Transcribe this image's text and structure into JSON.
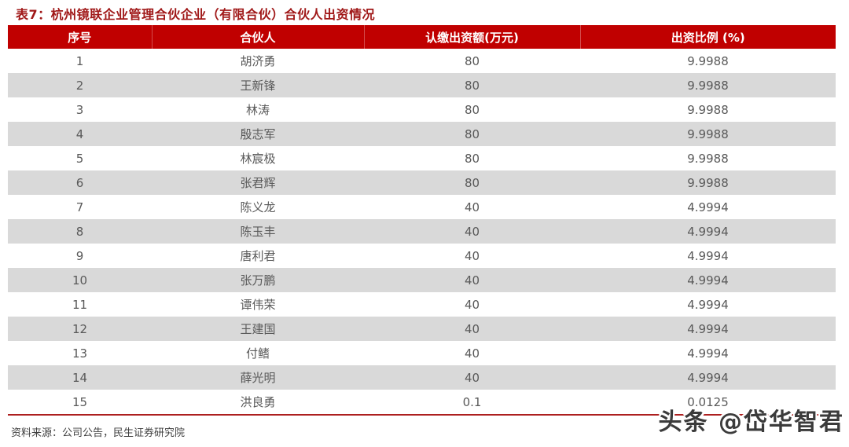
{
  "title": "表7：杭州镜联企业管理合伙企业（有限合伙）合伙人出资情况",
  "table": {
    "columns": [
      "序号",
      "合伙人",
      "认缴出资额(万元)",
      "出资比例 (%)"
    ],
    "rows": [
      {
        "seq": "1",
        "partner": "胡济勇",
        "amount": "80",
        "ratio": "9.9988"
      },
      {
        "seq": "2",
        "partner": "王新锋",
        "amount": "80",
        "ratio": "9.9988"
      },
      {
        "seq": "3",
        "partner": "林涛",
        "amount": "80",
        "ratio": "9.9988"
      },
      {
        "seq": "4",
        "partner": "殷志军",
        "amount": "80",
        "ratio": "9.9988"
      },
      {
        "seq": "5",
        "partner": "林宸极",
        "amount": "80",
        "ratio": "9.9988"
      },
      {
        "seq": "6",
        "partner": "张君辉",
        "amount": "80",
        "ratio": "9.9988"
      },
      {
        "seq": "7",
        "partner": "陈义龙",
        "amount": "40",
        "ratio": "4.9994"
      },
      {
        "seq": "8",
        "partner": "陈玉丰",
        "amount": "40",
        "ratio": "4.9994"
      },
      {
        "seq": "9",
        "partner": "唐利君",
        "amount": "40",
        "ratio": "4.9994"
      },
      {
        "seq": "10",
        "partner": "张万鹏",
        "amount": "40",
        "ratio": "4.9994"
      },
      {
        "seq": "11",
        "partner": "谭伟荣",
        "amount": "40",
        "ratio": "4.9994"
      },
      {
        "seq": "12",
        "partner": "王建国",
        "amount": "40",
        "ratio": "4.9994"
      },
      {
        "seq": "13",
        "partner": "付鳍",
        "amount": "40",
        "ratio": "4.9994"
      },
      {
        "seq": "14",
        "partner": "薛光明",
        "amount": "40",
        "ratio": "4.9994"
      },
      {
        "seq": "15",
        "partner": "洪良勇",
        "amount": "0.1",
        "ratio": "0.0125"
      }
    ]
  },
  "footer": {
    "source": "资料来源：公司公告，民生证券研究院"
  },
  "watermark": "头条 @岱华智君",
  "colors": {
    "header_bg": "#C00000",
    "title_text": "#A01818",
    "row_alt": "#D9D9D9",
    "cell_text": "#595959",
    "line": "#AD1F1F"
  }
}
